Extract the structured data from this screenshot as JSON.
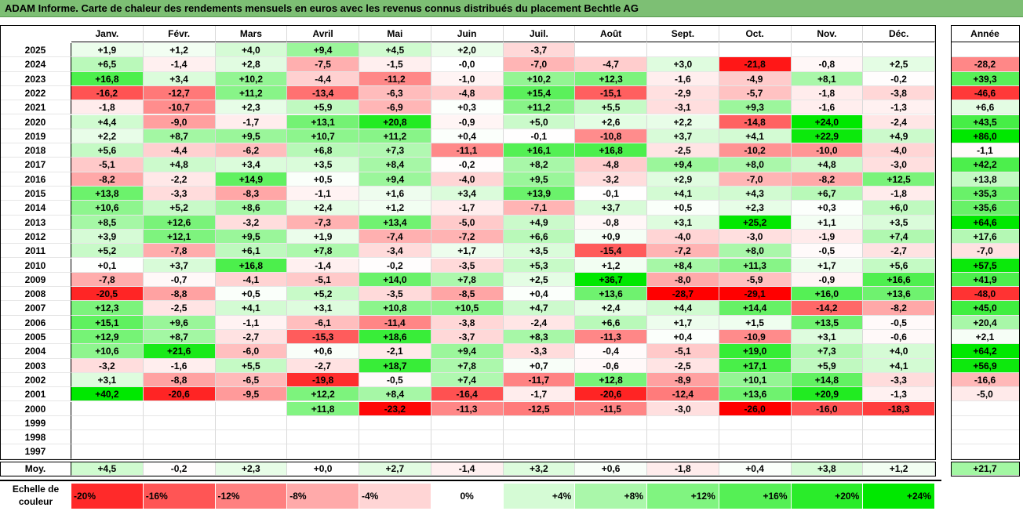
{
  "title": "ADAM Informe. Carte de chaleur des rendements mensuels en euros avec les revenus connus distribués du placement Bechtle AG",
  "chart_data": {
    "type": "heatmap",
    "title": "ADAM Informe. Carte de chaleur des rendements mensuels en euros avec les revenus connus distribués du placement Bechtle AG",
    "columns": [
      "Janv.",
      "Févr.",
      "Mars",
      "Avril",
      "Mai",
      "Juin",
      "Juil.",
      "Août",
      "Sept.",
      "Oct.",
      "Nov.",
      "Déc."
    ],
    "year_column": "Année",
    "avg_label": "Moy.",
    "rows": [
      {
        "year": "2025",
        "values": [
          "+1,9",
          "+1,2",
          "+4,0",
          "+9,4",
          "+4,5",
          "+2,0",
          "-3,7",
          "",
          "",
          "",
          "",
          ""
        ],
        "annual": ""
      },
      {
        "year": "2024",
        "values": [
          "+6,5",
          "-1,4",
          "+2,8",
          "-7,5",
          "-1,5",
          "-0,0",
          "-7,0",
          "-4,7",
          "+3,0",
          "-21,8",
          "-0,8",
          "+2,5"
        ],
        "annual": "-28,2"
      },
      {
        "year": "2023",
        "values": [
          "+16,8",
          "+3,4",
          "+10,2",
          "-4,4",
          "-11,2",
          "-1,0",
          "+10,2",
          "+12,3",
          "-1,6",
          "-4,9",
          "+8,1",
          "-0,2"
        ],
        "annual": "+39,3"
      },
      {
        "year": "2022",
        "values": [
          "-16,2",
          "-12,7",
          "+11,2",
          "-13,4",
          "-6,3",
          "-4,8",
          "+15,4",
          "-15,1",
          "-2,9",
          "-5,7",
          "-1,8",
          "-3,8"
        ],
        "annual": "-46,6"
      },
      {
        "year": "2021",
        "values": [
          "-1,8",
          "-10,7",
          "+2,3",
          "+5,9",
          "-6,9",
          "+0,3",
          "+11,2",
          "+5,5",
          "-3,1",
          "+9,3",
          "-1,6",
          "-1,3"
        ],
        "annual": "+6,6"
      },
      {
        "year": "2020",
        "values": [
          "+4,4",
          "-9,0",
          "-1,7",
          "+13,1",
          "+20,8",
          "-0,9",
          "+5,0",
          "+2,6",
          "+2,2",
          "-14,8",
          "+24,0",
          "-2,4"
        ],
        "annual": "+43,5"
      },
      {
        "year": "2019",
        "values": [
          "+2,2",
          "+8,7",
          "+9,5",
          "+10,7",
          "+11,2",
          "+0,4",
          "-0,1",
          "-10,8",
          "+3,7",
          "+4,1",
          "+22,9",
          "+4,9"
        ],
        "annual": "+86,0"
      },
      {
        "year": "2018",
        "values": [
          "+5,6",
          "-4,4",
          "-6,2",
          "+6,8",
          "+7,3",
          "-11,1",
          "+16,1",
          "+16,8",
          "-2,5",
          "-10,2",
          "-10,0",
          "-4,0"
        ],
        "annual": "-1,1"
      },
      {
        "year": "2017",
        "values": [
          "-5,1",
          "+4,8",
          "+3,4",
          "+3,5",
          "+8,4",
          "-0,2",
          "+8,2",
          "-4,8",
          "+9,4",
          "+8,0",
          "+4,8",
          "-3,0"
        ],
        "annual": "+42,2"
      },
      {
        "year": "2016",
        "values": [
          "-8,2",
          "-2,2",
          "+14,9",
          "+0,5",
          "+9,4",
          "-4,0",
          "+9,5",
          "-3,2",
          "+2,9",
          "-7,0",
          "-8,2",
          "+12,5"
        ],
        "annual": "+13,8"
      },
      {
        "year": "2015",
        "values": [
          "+13,8",
          "-3,3",
          "-8,3",
          "-1,1",
          "+1,6",
          "+3,4",
          "+13,9",
          "-0,1",
          "+4,1",
          "+4,3",
          "+6,7",
          "-1,8"
        ],
        "annual": "+35,3"
      },
      {
        "year": "2014",
        "values": [
          "+10,6",
          "+5,2",
          "+8,6",
          "+2,4",
          "+1,2",
          "-1,7",
          "-7,1",
          "+3,7",
          "+0,5",
          "+2,3",
          "+0,3",
          "+6,0"
        ],
        "annual": "+35,6"
      },
      {
        "year": "2013",
        "values": [
          "+8,5",
          "+12,6",
          "-3,2",
          "-7,3",
          "+13,4",
          "-5,0",
          "+4,9",
          "-0,8",
          "+3,1",
          "+25,2",
          "+1,1",
          "+3,5"
        ],
        "annual": "+64,6"
      },
      {
        "year": "2012",
        "values": [
          "+3,9",
          "+12,1",
          "+9,5",
          "+1,9",
          "-7,4",
          "-7,2",
          "+6,6",
          "+0,9",
          "-4,0",
          "-3,0",
          "-1,9",
          "+7,4"
        ],
        "annual": "+17,6"
      },
      {
        "year": "2011",
        "values": [
          "+5,2",
          "-7,8",
          "+6,1",
          "+7,8",
          "-3,4",
          "+1,7",
          "+3,5",
          "-15,4",
          "-7,2",
          "+8,0",
          "-0,5",
          "-2,7"
        ],
        "annual": "-7,0"
      },
      {
        "year": "2010",
        "values": [
          "+0,1",
          "+3,7",
          "+16,8",
          "-1,4",
          "-0,2",
          "-3,5",
          "+5,3",
          "+1,2",
          "+8,4",
          "+11,3",
          "+1,7",
          "+5,6"
        ],
        "annual": "+57,5"
      },
      {
        "year": "2009",
        "values": [
          "-7,8",
          "-0,7",
          "-4,1",
          "-5,1",
          "+14,0",
          "+7,8",
          "+2,5",
          "+36,7",
          "-8,0",
          "-5,9",
          "-0,9",
          "+16,6"
        ],
        "annual": "+41,9"
      },
      {
        "year": "2008",
        "values": [
          "-20,5",
          "-8,8",
          "+0,5",
          "+5,2",
          "-3,5",
          "-8,5",
          "+0,4",
          "+13,6",
          "-28,7",
          "-29,1",
          "+16,0",
          "+13,6"
        ],
        "annual": "-48,0"
      },
      {
        "year": "2007",
        "values": [
          "+12,3",
          "-2,5",
          "+4,1",
          "+3,1",
          "+10,8",
          "+10,5",
          "+4,7",
          "+2,4",
          "+4,4",
          "+14,4",
          "-14,2",
          "-8,2"
        ],
        "annual": "+45,0"
      },
      {
        "year": "2006",
        "values": [
          "+15,1",
          "+9,6",
          "-1,1",
          "-6,1",
          "-11,4",
          "-3,8",
          "-2,4",
          "+6,6",
          "+1,7",
          "+1,5",
          "+13,5",
          "-0,5"
        ],
        "annual": "+20,4"
      },
      {
        "year": "2005",
        "values": [
          "+12,9",
          "+8,7",
          "-2,7",
          "-15,3",
          "+18,6",
          "-3,7",
          "+8,3",
          "-11,3",
          "+0,4",
          "-10,9",
          "+3,1",
          "-0,6"
        ],
        "annual": "+2,1"
      },
      {
        "year": "2004",
        "values": [
          "+10,6",
          "+21,6",
          "-6,0",
          "+0,6",
          "-2,1",
          "+9,4",
          "-3,3",
          "-0,4",
          "-5,1",
          "+19,0",
          "+7,3",
          "+4,0"
        ],
        "annual": "+64,2"
      },
      {
        "year": "2003",
        "values": [
          "-3,2",
          "-1,6",
          "+5,5",
          "-2,7",
          "+18,7",
          "+7,8",
          "+0,7",
          "-0,6",
          "-2,5",
          "+17,1",
          "+5,9",
          "+4,1"
        ],
        "annual": "+56,9"
      },
      {
        "year": "2002",
        "values": [
          "+3,1",
          "-8,8",
          "-6,5",
          "-19,8",
          "-0,5",
          "+7,4",
          "-11,7",
          "+12,8",
          "-8,9",
          "+10,1",
          "+14,8",
          "-3,3"
        ],
        "annual": "-16,6"
      },
      {
        "year": "2001",
        "values": [
          "+40,2",
          "-20,6",
          "-9,5",
          "+12,2",
          "+8,4",
          "-16,4",
          "-1,7",
          "-20,6",
          "-12,4",
          "+13,6",
          "+20,9",
          "-1,3"
        ],
        "annual": "-5,0"
      },
      {
        "year": "2000",
        "values": [
          "",
          "",
          "",
          "+11,8",
          "-23,2",
          "-11,3",
          "-12,5",
          "-11,5",
          "-3,0",
          "-26,0",
          "-16,0",
          "-18,3"
        ],
        "annual": ""
      },
      {
        "year": "1999",
        "values": [
          "",
          "",
          "",
          "",
          "",
          "",
          "",
          "",
          "",
          "",
          "",
          ""
        ],
        "annual": ""
      },
      {
        "year": "1998",
        "values": [
          "",
          "",
          "",
          "",
          "",
          "",
          "",
          "",
          "",
          "",
          "",
          ""
        ],
        "annual": ""
      },
      {
        "year": "1997",
        "values": [
          "",
          "",
          "",
          "",
          "",
          "",
          "",
          "",
          "",
          "",
          "",
          ""
        ],
        "annual": ""
      }
    ],
    "average": {
      "values": [
        "+4,5",
        "-0,2",
        "+2,3",
        "+0,0",
        "+2,7",
        "-1,4",
        "+3,2",
        "+0,6",
        "-1,8",
        "+0,4",
        "+3,8",
        "+1,2"
      ],
      "annual": "+21,7"
    },
    "scale": {
      "label_line1": "Echelle de",
      "label_line2": "couleur",
      "steps": [
        "-20%",
        "-16%",
        "-12%",
        "-8%",
        "-4%",
        "0%",
        "+4%",
        "+8%",
        "+12%",
        "+16%",
        "+20%",
        "+24%"
      ]
    },
    "colors": {
      "neg_max": "#ff0000",
      "neutral": "#ffffff",
      "pos_max": "#00e800"
    }
  }
}
